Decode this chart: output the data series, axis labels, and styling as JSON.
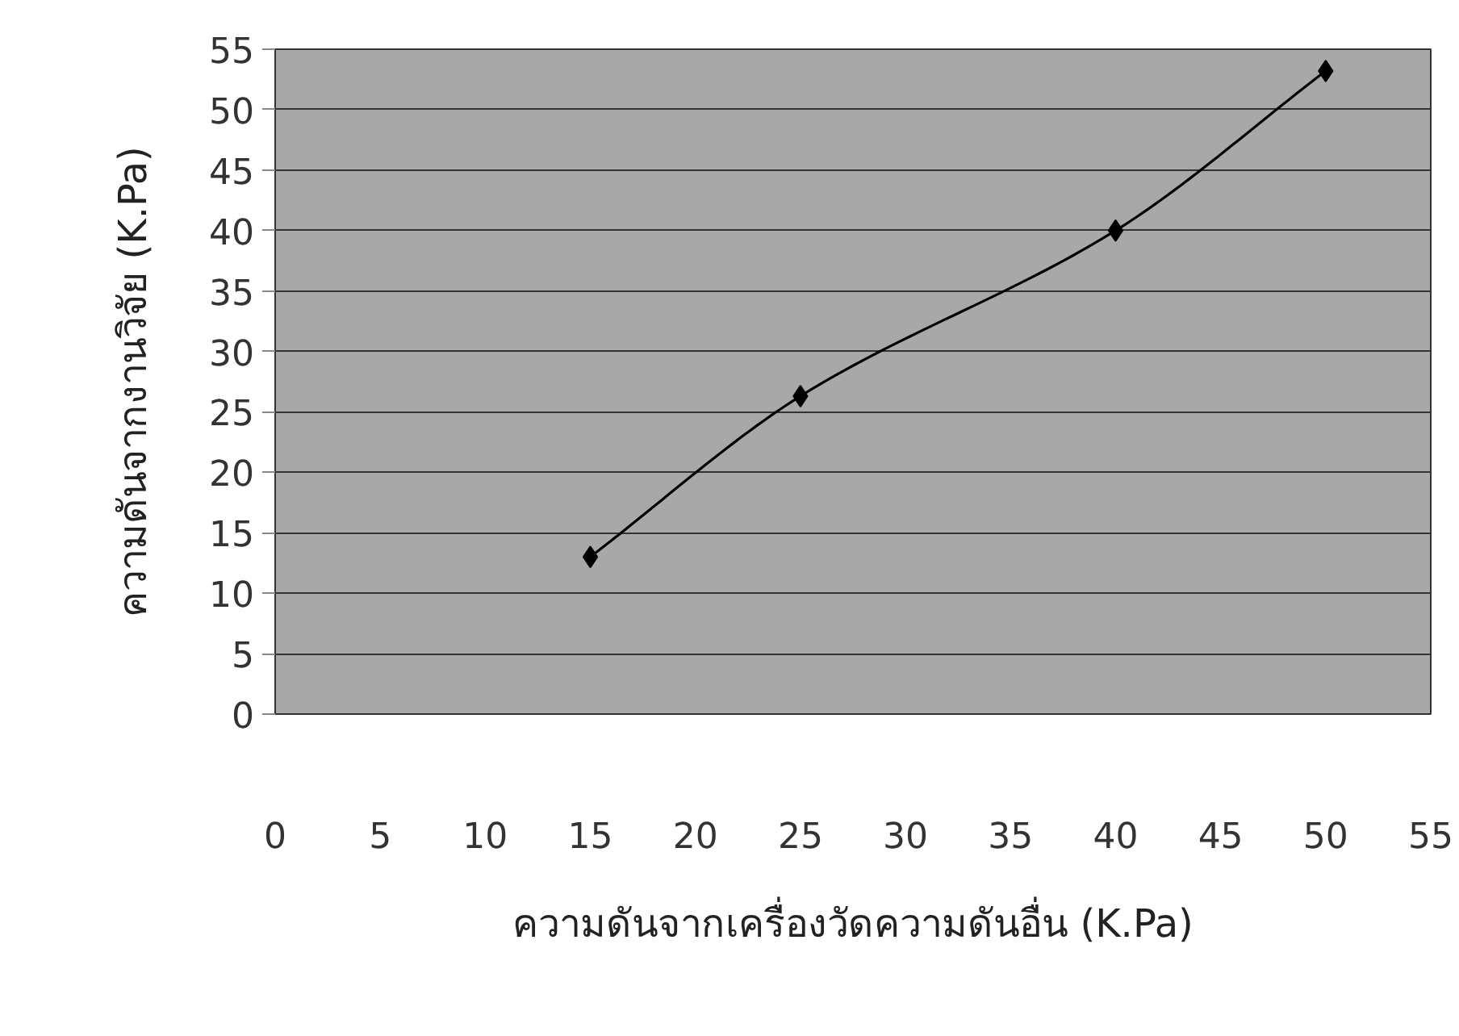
{
  "chart_data": {
    "type": "line",
    "xlabel": "ความดันจากเครื่องวัดความดันอื่น (K.Pa)",
    "ylabel": "ความดันจากงานวิจัย (K.Pa)",
    "x": [
      15,
      25,
      40,
      50
    ],
    "series": [
      {
        "color": "#000000",
        "values": [
          13,
          26.3,
          40,
          53.2
        ]
      }
    ],
    "xlim": [
      0,
      55
    ],
    "ylim": [
      0,
      55
    ],
    "xticks": [
      0,
      5,
      10,
      15,
      20,
      25,
      30,
      35,
      40,
      45,
      50,
      55
    ],
    "yticks": [
      0,
      5,
      10,
      15,
      20,
      25,
      30,
      35,
      40,
      45,
      50,
      55
    ],
    "grid": "y",
    "marker": "diamond",
    "line_style": "solid"
  }
}
